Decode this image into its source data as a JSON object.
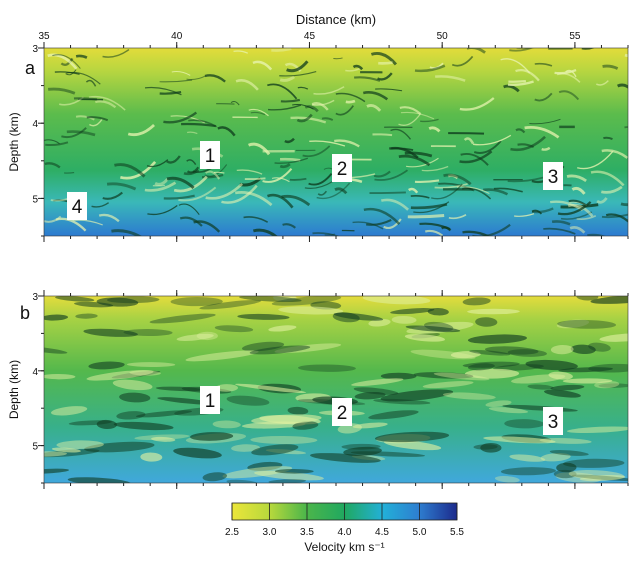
{
  "figure": {
    "xlabel": "Distance (km)",
    "xlim": [
      35,
      57
    ],
    "xticks": [
      35,
      40,
      45,
      50,
      55
    ],
    "panels": [
      {
        "label": "a",
        "ylabel": "Depth (km)",
        "ylim": [
          3,
          5.5
        ],
        "yticks": [
          3,
          4,
          5
        ],
        "annotations": [
          "1",
          "2",
          "3",
          "4"
        ]
      },
      {
        "label": "b",
        "ylabel": "Depth (km)",
        "ylim": [
          3,
          5.5
        ],
        "yticks": [
          3,
          4,
          5
        ],
        "annotations": [
          "1",
          "2",
          "3"
        ]
      }
    ],
    "colorbar": {
      "label": "Velocity km s⁻¹",
      "lim": [
        2.5,
        5.5
      ],
      "ticks": [
        2.5,
        {
          "value": 3,
          "label": "3.0"
        },
        3.5,
        {
          "value": 4,
          "label": "4.0"
        },
        4.5,
        {
          "value": 5,
          "label": "5.0"
        },
        5.5
      ]
    }
  }
}
